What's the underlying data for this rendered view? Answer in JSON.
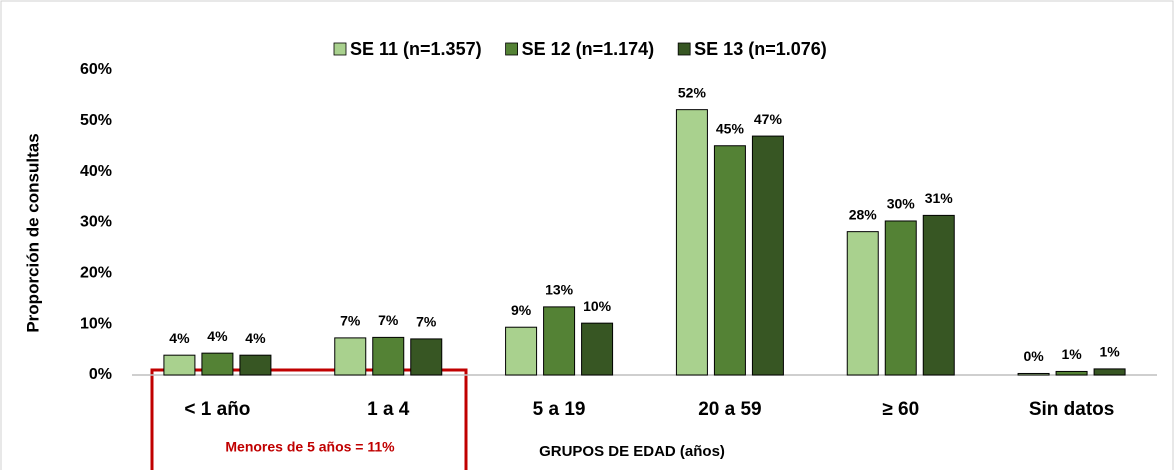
{
  "chart_data": {
    "type": "bar",
    "y_label": "Proporción de consultas",
    "x_label": "GRUPOS DE EDAD (años)",
    "annotation": "Menores de 5 años = 11%",
    "categories": [
      "< 1 año",
      "1 a 4",
      "5 a 19",
      "20 a 59",
      "≥ 60",
      "Sin datos"
    ],
    "series": [
      {
        "name": "SE 11 (n=1.357)",
        "color": "#a9d18e",
        "values": [
          3.9,
          7.3,
          9.4,
          52.2,
          28.2,
          0.3
        ],
        "value_labels": [
          "4%",
          "7%",
          "9%",
          "52%",
          "28%",
          "0%"
        ]
      },
      {
        "name": "SE 12 (n=1.174)",
        "color": "#548235",
        "values": [
          4.3,
          7.4,
          13.4,
          45.1,
          30.3,
          0.7
        ],
        "value_labels": [
          "4%",
          "7%",
          "13%",
          "45%",
          "30%",
          "1%"
        ]
      },
      {
        "name": "SE 13 (n=1.076)",
        "color": "#375623",
        "values": [
          3.9,
          7.1,
          10.2,
          47.0,
          31.4,
          1.2
        ],
        "value_labels": [
          "4%",
          "7%",
          "10%",
          "47%",
          "31%",
          "1%"
        ]
      }
    ],
    "ylim": [
      0,
      60
    ],
    "yticks": [
      {
        "value": 0,
        "label": "0%"
      },
      {
        "value": 10,
        "label": "10%"
      },
      {
        "value": 20,
        "label": "20%"
      },
      {
        "value": 30,
        "label": "30%"
      },
      {
        "value": 40,
        "label": "40%"
      },
      {
        "value": 50,
        "label": "50%"
      },
      {
        "value": 60,
        "label": "60%"
      }
    ],
    "grid": false,
    "legend": "top"
  }
}
